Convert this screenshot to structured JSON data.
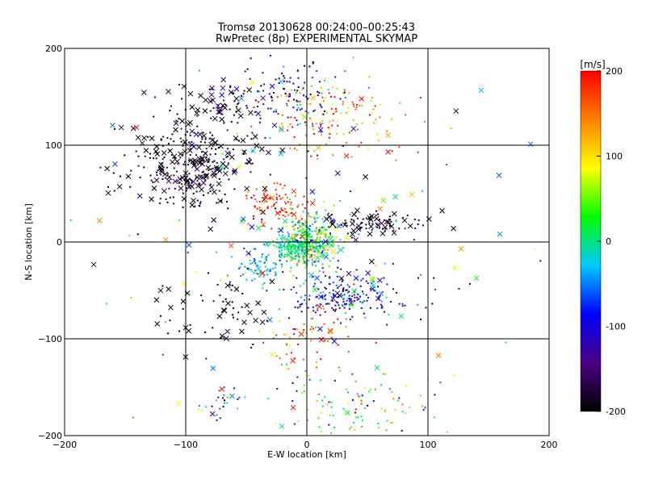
{
  "chart_data": {
    "type": "scatter",
    "title": "Tromsø 20130628 00:24:00–00:25:43",
    "subtitle": "RwPretec (8p) EXPERIMENTAL SKYMAP",
    "xlabel": "E-W location [km]",
    "ylabel": "N-S location [km]",
    "xlim": [
      -200,
      200
    ],
    "ylim": [
      -200,
      200
    ],
    "xticks": [
      -200,
      -100,
      0,
      100,
      200
    ],
    "yticks": [
      -200,
      -100,
      0,
      100,
      200
    ],
    "grid": true,
    "colorbar": {
      "label": "[m/s]",
      "range": [
        -200,
        200
      ],
      "ticks": [
        200,
        100,
        0,
        -100,
        -200
      ],
      "colormap": [
        "#000000",
        "#4b0082",
        "#0000ff",
        "#00c8ff",
        "#00ff00",
        "#ffff00",
        "#ff8000",
        "#ff0000"
      ]
    },
    "markers": {
      "small": "point",
      "large": "x"
    },
    "clusters": [
      {
        "cx": 2,
        "cy": 0,
        "sx": 12,
        "sy": 14,
        "n": 420,
        "vmean": 20,
        "vsd": 70,
        "xfrac": 0.05
      },
      {
        "cx": -12,
        "cy": -5,
        "sx": 8,
        "sy": 6,
        "n": 120,
        "vmean": -5,
        "vsd": 25,
        "xfrac": 0.06
      },
      {
        "cx": 30,
        "cy": -58,
        "sx": 25,
        "sy": 12,
        "n": 200,
        "vmean": -90,
        "vsd": 45,
        "xfrac": 0.04
      },
      {
        "cx": 55,
        "cy": 20,
        "sx": 20,
        "sy": 6,
        "n": 90,
        "vmean": -190,
        "vsd": 20,
        "xfrac": 0.35
      },
      {
        "cx": 20,
        "cy": 130,
        "sx": 30,
        "sy": 22,
        "n": 150,
        "vmean": 150,
        "vsd": 60,
        "xfrac": 0.05
      },
      {
        "cx": -10,
        "cy": 150,
        "sx": 18,
        "sy": 18,
        "n": 110,
        "vmean": -100,
        "vsd": 70,
        "xfrac": 0.05
      },
      {
        "cx": -95,
        "cy": 80,
        "sx": 25,
        "sy": 25,
        "n": 330,
        "vmean": -190,
        "vsd": 25,
        "xfrac": 0.4
      },
      {
        "cx": -70,
        "cy": 145,
        "sx": 15,
        "sy": 12,
        "n": 60,
        "vmean": -180,
        "vsd": 40,
        "xfrac": 0.45
      },
      {
        "cx": -25,
        "cy": 40,
        "sx": 12,
        "sy": 12,
        "n": 90,
        "vmean": 180,
        "vsd": 25,
        "xfrac": 0.08
      },
      {
        "cx": -40,
        "cy": -25,
        "sx": 10,
        "sy": 8,
        "n": 70,
        "vmean": -30,
        "vsd": 30,
        "xfrac": 0.03
      },
      {
        "cx": 35,
        "cy": -165,
        "sx": 35,
        "sy": 20,
        "n": 110,
        "vmean": 20,
        "vsd": 80,
        "xfrac": 0.03
      },
      {
        "cx": -70,
        "cy": -70,
        "sx": 25,
        "sy": 18,
        "n": 60,
        "vmean": -200,
        "vsd": 15,
        "xfrac": 0.3
      },
      {
        "cx": 0,
        "cy": -100,
        "sx": 20,
        "sy": 15,
        "n": 60,
        "vmean": 150,
        "vsd": 50,
        "xfrac": 0.06
      },
      {
        "cx": -70,
        "cy": -165,
        "sx": 10,
        "sy": 8,
        "n": 25,
        "vmean": -60,
        "vsd": 60,
        "xfrac": 0.05
      },
      {
        "cx": 0,
        "cy": 0,
        "sx": 90,
        "sy": 90,
        "n": 150,
        "vmean": 0,
        "vsd": 130,
        "xfrac": 0.5
      }
    ]
  }
}
